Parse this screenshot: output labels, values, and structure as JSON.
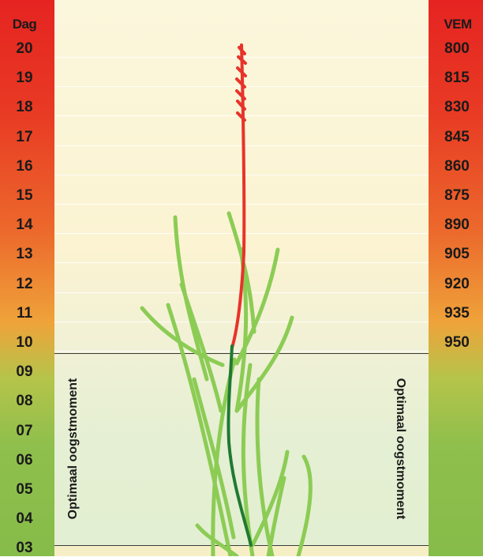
{
  "left_scale": {
    "header": "Dag",
    "labels": [
      "20",
      "19",
      "18",
      "17",
      "16",
      "15",
      "14",
      "13",
      "12",
      "11",
      "10",
      "09",
      "08",
      "07",
      "06",
      "05",
      "04",
      "03"
    ]
  },
  "right_scale": {
    "header": "VEM",
    "labels": [
      "800",
      "815",
      "830",
      "845",
      "860",
      "875",
      "890",
      "905",
      "920",
      "935",
      "950"
    ]
  },
  "optimal_window": {
    "label_left": "Optimaal oogstmoment",
    "label_right": "Optimaal oogstmoment"
  },
  "colors": {
    "scale_top": "#e52421",
    "scale_bottom": "#86bc4a",
    "stem_red": "#e8332a",
    "stem_dark_green": "#1f7a32",
    "leaf_green": "#8ccc55",
    "boundary_line": "#3a3a3a"
  },
  "icons": [
    "grass-plant-illustration"
  ]
}
